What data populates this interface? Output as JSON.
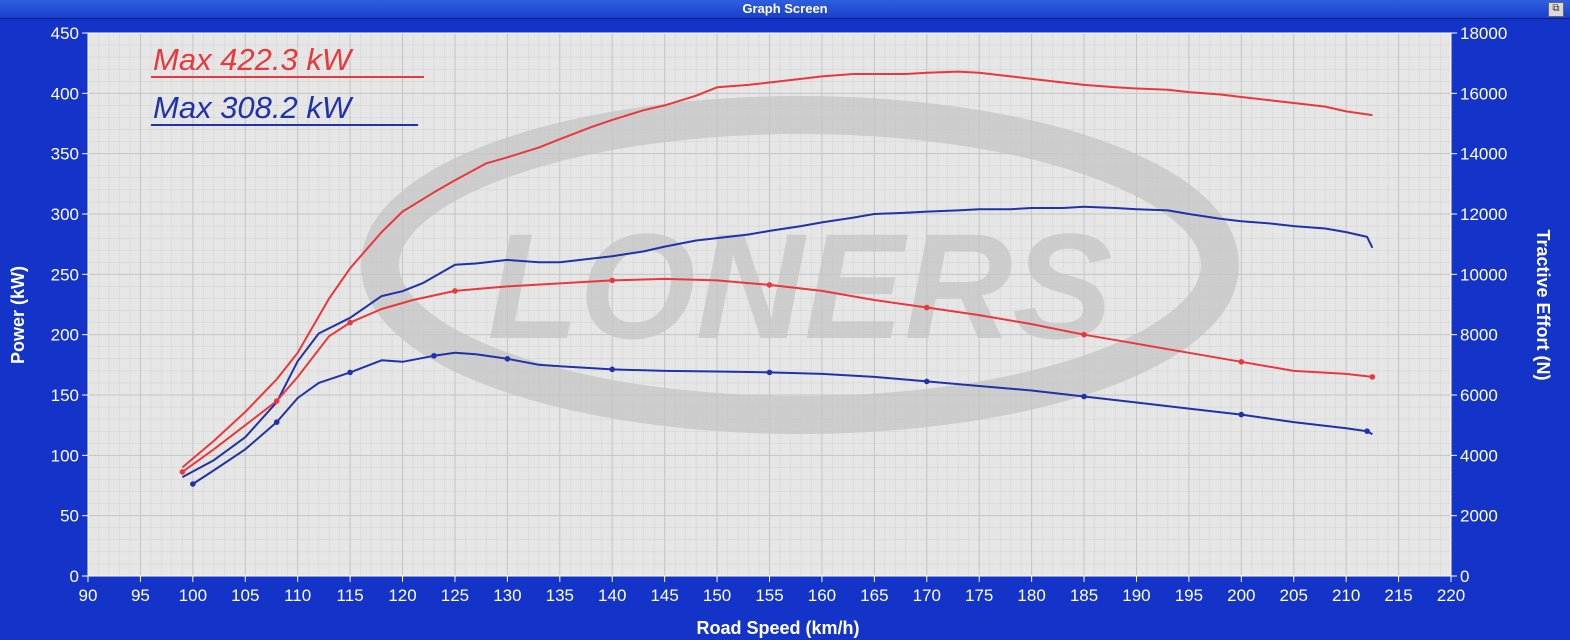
{
  "window": {
    "title": "Graph Screen"
  },
  "colors": {
    "background": "#1433c8",
    "plot": "#e6e6e6",
    "grid": "#c4c4c4",
    "red": "#e8383c",
    "blue": "#1f32a8"
  },
  "chart_data": {
    "type": "line",
    "xlabel": "Road Speed (km/h)",
    "ylabel": "Power (kW)",
    "y2label": "Tractive Effort (N)",
    "xlim": [
      90,
      220
    ],
    "ylim": [
      0,
      450
    ],
    "y2lim": [
      0,
      18000
    ],
    "x_ticks": [
      "90",
      "95",
      "100",
      "105",
      "110",
      "115",
      "120",
      "125",
      "130",
      "135",
      "140",
      "145",
      "150",
      "155",
      "160",
      "165",
      "170",
      "175",
      "180",
      "185",
      "190",
      "195",
      "200",
      "205",
      "210",
      "215",
      "220"
    ],
    "y_ticks": [
      "0",
      "50",
      "100",
      "150",
      "200",
      "250",
      "300",
      "350",
      "400",
      "450"
    ],
    "y2_ticks": [
      "0",
      "2000",
      "4000",
      "6000",
      "8000",
      "10000",
      "12000",
      "14000",
      "16000",
      "18000"
    ],
    "grid": true,
    "legend": [
      {
        "label": "Max 422.3 kW",
        "color": "#e8383c"
      },
      {
        "label": "Max 308.2 kW",
        "color": "#1f32a8"
      }
    ],
    "series": [
      {
        "color": "#e8383c",
        "kind": "power",
        "axis": "left",
        "x": [
          99,
          102,
          105,
          108,
          110,
          113,
          115,
          118,
          120,
          123,
          125,
          128,
          130,
          133,
          135,
          138,
          140,
          143,
          145,
          148,
          150,
          153,
          155,
          158,
          160,
          163,
          165,
          168,
          170,
          173,
          175,
          178,
          180,
          183,
          185,
          188,
          190,
          193,
          195,
          198,
          200,
          203,
          205,
          208,
          210,
          212.5
        ],
        "y": [
          90,
          112,
          136,
          163,
          185,
          230,
          255,
          285,
          302,
          318,
          328,
          342,
          347,
          355,
          362,
          372,
          378,
          386,
          390,
          398,
          405,
          407,
          409,
          412,
          414,
          416,
          416,
          416,
          417,
          418,
          417,
          414,
          412,
          409,
          407,
          405,
          404,
          403,
          401,
          399,
          397,
          394,
          392,
          389,
          385,
          382
        ]
      },
      {
        "color": "#1f32a8",
        "kind": "power",
        "axis": "left",
        "x": [
          99,
          102,
          105,
          108,
          110,
          112,
          115,
          118,
          120,
          122,
          125,
          127,
          130,
          133,
          135,
          138,
          140,
          143,
          145,
          148,
          150,
          153,
          155,
          158,
          160,
          163,
          165,
          168,
          170,
          173,
          175,
          178,
          180,
          183,
          185,
          188,
          190,
          193,
          195,
          198,
          200,
          203,
          205,
          208,
          210,
          212,
          212.5
        ],
        "y": [
          82,
          96,
          115,
          144,
          178,
          201,
          214,
          232,
          236,
          243,
          258,
          259,
          262,
          260,
          260,
          263,
          265,
          269,
          273,
          278,
          280,
          283,
          286,
          290,
          293,
          297,
          300,
          301,
          302,
          303,
          304,
          304,
          305,
          305,
          306,
          305,
          304,
          303,
          300,
          296,
          294,
          292,
          290,
          288,
          285,
          281,
          272
        ]
      },
      {
        "color": "#e8383c",
        "kind": "tractive",
        "axis": "right",
        "x": [
          99,
          102,
          105,
          108,
          110,
          113,
          115,
          118,
          121,
          125,
          130,
          135,
          140,
          145,
          150,
          155,
          160,
          165,
          170,
          175,
          180,
          185,
          190,
          195,
          200,
          205,
          210,
          212.5
        ],
        "y": [
          3450,
          4200,
          5000,
          5800,
          6600,
          7950,
          8400,
          8850,
          9150,
          9450,
          9600,
          9700,
          9800,
          9850,
          9800,
          9650,
          9450,
          9150,
          8900,
          8650,
          8350,
          8000,
          7700,
          7400,
          7100,
          6800,
          6700,
          6600
        ]
      },
      {
        "color": "#1f32a8",
        "kind": "tractive",
        "axis": "right",
        "x": [
          100,
          102,
          105,
          108,
          110,
          112,
          115,
          118,
          120,
          123,
          125,
          127,
          130,
          133,
          135,
          140,
          145,
          150,
          155,
          160,
          165,
          170,
          175,
          180,
          185,
          190,
          195,
          200,
          205,
          210,
          212,
          212.5
        ],
        "y": [
          3050,
          3500,
          4200,
          5100,
          5900,
          6400,
          6750,
          7150,
          7100,
          7300,
          7400,
          7350,
          7200,
          7000,
          6950,
          6850,
          6800,
          6780,
          6750,
          6700,
          6600,
          6450,
          6300,
          6150,
          5950,
          5750,
          5550,
          5350,
          5100,
          4900,
          4800,
          4700
        ]
      }
    ]
  }
}
